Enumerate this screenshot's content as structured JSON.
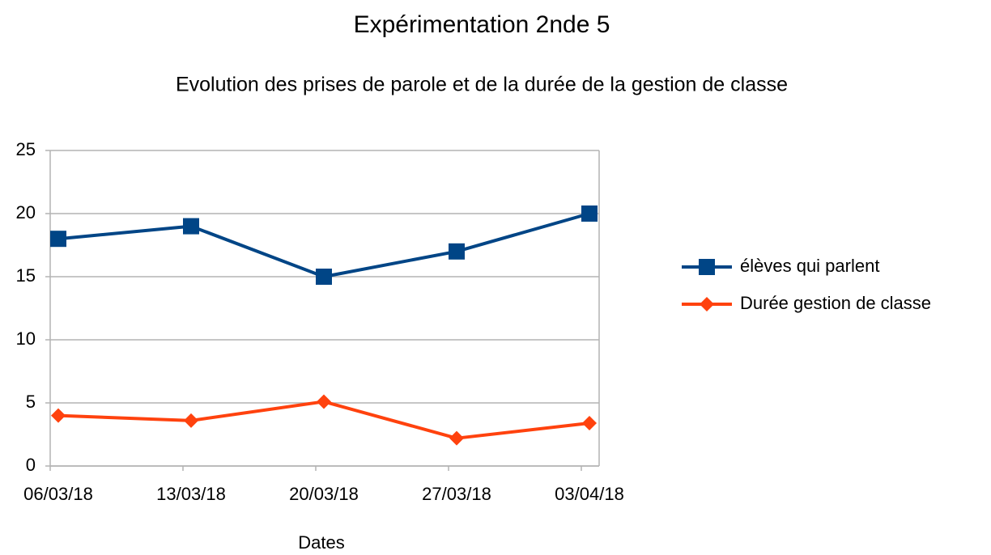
{
  "chart_data": {
    "type": "line",
    "title": "Expérimentation 2nde 5",
    "subtitle": "Evolution des prises de parole et de la durée de la gestion de classe",
    "x_label": "Dates",
    "categories": [
      "06/03/18",
      "13/03/18",
      "20/03/18",
      "27/03/18",
      "03/04/18"
    ],
    "series": [
      {
        "name": "élèves qui parlent",
        "color": "#004586",
        "marker": "square",
        "values": [
          18,
          19,
          15,
          17,
          20
        ]
      },
      {
        "name": "Durée gestion de classe",
        "color": "#ff420e",
        "marker": "diamond",
        "values": [
          4,
          3.6,
          5.1,
          2.2,
          3.4
        ]
      }
    ],
    "ylim": [
      0,
      25
    ],
    "yticks": [
      0,
      5,
      10,
      15,
      20,
      25
    ],
    "grid": true,
    "legend": "right"
  }
}
